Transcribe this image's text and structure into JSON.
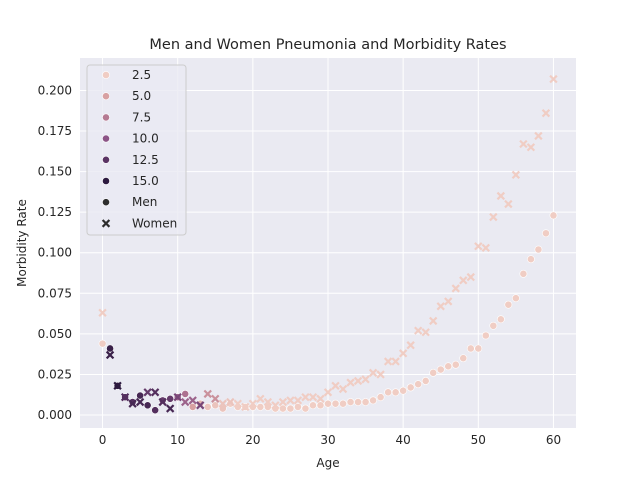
{
  "chart_data": {
    "type": "scatter",
    "title": "Men and Women Pneumonia and Morbidity Rates",
    "xlabel": "Age",
    "ylabel": "Morbidity Rate",
    "xlim": [
      -3,
      63
    ],
    "ylim": [
      -0.008,
      0.22
    ],
    "x_ticks": [
      0,
      10,
      20,
      30,
      40,
      50,
      60
    ],
    "y_ticks": [
      0.0,
      0.025,
      0.05,
      0.075,
      0.1,
      0.125,
      0.15,
      0.175,
      0.2
    ],
    "y_tick_labels": [
      "0.000",
      "0.025",
      "0.050",
      "0.075",
      "0.100",
      "0.125",
      "0.150",
      "0.175",
      "0.200"
    ],
    "grid": true,
    "legend_position": "top-left",
    "hue_legend": [
      "2.5",
      "5.0",
      "7.5",
      "10.0",
      "12.5",
      "15.0"
    ],
    "style_legend": [
      "Men",
      "Women"
    ],
    "hue_colors": [
      "#f0cdc4",
      "#d8a1a2",
      "#b57a92",
      "#8c5486",
      "#5a3363",
      "#2d1a3f"
    ],
    "series": [
      {
        "name": "Men",
        "marker": "circle",
        "points": [
          [
            0,
            0.044,
            0
          ],
          [
            1,
            0.041,
            15
          ],
          [
            2,
            0.018,
            16
          ],
          [
            3,
            0.011,
            13
          ],
          [
            4,
            0.008,
            13
          ],
          [
            5,
            0.012,
            14
          ],
          [
            6,
            0.006,
            14
          ],
          [
            7,
            0.003,
            13
          ],
          [
            8,
            0.009,
            12
          ],
          [
            9,
            0.01,
            12
          ],
          [
            10,
            0.011,
            9
          ],
          [
            11,
            0.013,
            8
          ],
          [
            12,
            0.005,
            5
          ],
          [
            13,
            0.007,
            4
          ],
          [
            14,
            0.005,
            3
          ],
          [
            15,
            0.006,
            3
          ],
          [
            16,
            0.004,
            3
          ],
          [
            17,
            0.007,
            2
          ],
          [
            18,
            0.005,
            2
          ],
          [
            19,
            0.005,
            2
          ],
          [
            20,
            0.005,
            2
          ],
          [
            21,
            0.005,
            2
          ],
          [
            22,
            0.005,
            2
          ],
          [
            23,
            0.004,
            2
          ],
          [
            24,
            0.004,
            2
          ],
          [
            25,
            0.004,
            2
          ],
          [
            26,
            0.005,
            2
          ],
          [
            27,
            0.004,
            2
          ],
          [
            28,
            0.006,
            2
          ],
          [
            29,
            0.006,
            2
          ],
          [
            30,
            0.007,
            2
          ],
          [
            31,
            0.007,
            2
          ],
          [
            32,
            0.007,
            2
          ],
          [
            33,
            0.008,
            2
          ],
          [
            34,
            0.008,
            2
          ],
          [
            35,
            0.008,
            2
          ],
          [
            36,
            0.009,
            2
          ],
          [
            37,
            0.011,
            2
          ],
          [
            38,
            0.014,
            2
          ],
          [
            39,
            0.014,
            2
          ],
          [
            40,
            0.015,
            2
          ],
          [
            41,
            0.017,
            2
          ],
          [
            42,
            0.019,
            2
          ],
          [
            43,
            0.021,
            2
          ],
          [
            44,
            0.026,
            2
          ],
          [
            45,
            0.028,
            2
          ],
          [
            46,
            0.03,
            2
          ],
          [
            47,
            0.031,
            2
          ],
          [
            48,
            0.035,
            2
          ],
          [
            49,
            0.041,
            2
          ],
          [
            50,
            0.041,
            2
          ],
          [
            51,
            0.049,
            2
          ],
          [
            52,
            0.055,
            2
          ],
          [
            53,
            0.059,
            2
          ],
          [
            54,
            0.068,
            2
          ],
          [
            55,
            0.072,
            2
          ],
          [
            56,
            0.087,
            2
          ],
          [
            57,
            0.096,
            2
          ],
          [
            58,
            0.102,
            2
          ],
          [
            59,
            0.112,
            2
          ],
          [
            60,
            0.123,
            2
          ]
        ]
      },
      {
        "name": "Women",
        "marker": "x",
        "points": [
          [
            0,
            0.063,
            0
          ],
          [
            1,
            0.037,
            15
          ],
          [
            2,
            0.018,
            16
          ],
          [
            3,
            0.011,
            13
          ],
          [
            4,
            0.007,
            14
          ],
          [
            5,
            0.008,
            14
          ],
          [
            6,
            0.014,
            12
          ],
          [
            7,
            0.014,
            13
          ],
          [
            8,
            0.008,
            13
          ],
          [
            9,
            0.004,
            14
          ],
          [
            10,
            0.011,
            11
          ],
          [
            11,
            0.008,
            9
          ],
          [
            12,
            0.009,
            9
          ],
          [
            13,
            0.006,
            11
          ],
          [
            14,
            0.013,
            6
          ],
          [
            15,
            0.01,
            6
          ],
          [
            16,
            0.007,
            3
          ],
          [
            17,
            0.008,
            3
          ],
          [
            18,
            0.007,
            2
          ],
          [
            19,
            0.005,
            2
          ],
          [
            20,
            0.007,
            2
          ],
          [
            21,
            0.01,
            2
          ],
          [
            22,
            0.008,
            2
          ],
          [
            23,
            0.006,
            2
          ],
          [
            24,
            0.008,
            2
          ],
          [
            25,
            0.009,
            2
          ],
          [
            26,
            0.009,
            2
          ],
          [
            27,
            0.011,
            2
          ],
          [
            28,
            0.011,
            2
          ],
          [
            29,
            0.01,
            2
          ],
          [
            30,
            0.014,
            2
          ],
          [
            31,
            0.018,
            2
          ],
          [
            32,
            0.016,
            2
          ],
          [
            33,
            0.02,
            2
          ],
          [
            34,
            0.021,
            2
          ],
          [
            35,
            0.022,
            2
          ],
          [
            36,
            0.026,
            2
          ],
          [
            37,
            0.025,
            2
          ],
          [
            38,
            0.033,
            2
          ],
          [
            39,
            0.033,
            2
          ],
          [
            40,
            0.038,
            2
          ],
          [
            41,
            0.043,
            2
          ],
          [
            42,
            0.052,
            2
          ],
          [
            43,
            0.051,
            2
          ],
          [
            44,
            0.058,
            2
          ],
          [
            45,
            0.067,
            2
          ],
          [
            46,
            0.07,
            2
          ],
          [
            47,
            0.078,
            2
          ],
          [
            48,
            0.083,
            2
          ],
          [
            49,
            0.085,
            2
          ],
          [
            50,
            0.104,
            2
          ],
          [
            51,
            0.103,
            2
          ],
          [
            52,
            0.122,
            2
          ],
          [
            53,
            0.135,
            2
          ],
          [
            54,
            0.13,
            2
          ],
          [
            55,
            0.148,
            2
          ],
          [
            56,
            0.167,
            2
          ],
          [
            57,
            0.165,
            2
          ],
          [
            58,
            0.172,
            2
          ],
          [
            59,
            0.186,
            2
          ],
          [
            60,
            0.207,
            2
          ]
        ]
      }
    ]
  }
}
